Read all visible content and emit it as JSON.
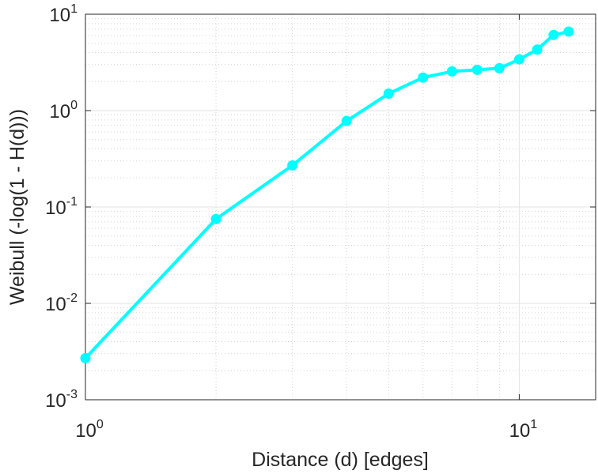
{
  "chart_data": {
    "type": "line",
    "xlabel": "Distance (d) [edges]",
    "ylabel": "Weibull (-log(1 - H(d)))",
    "xscale": "log",
    "yscale": "log",
    "xlim": [
      1,
      15
    ],
    "ylim": [
      0.001,
      10
    ],
    "grid": true,
    "minor_grid": true,
    "line_color": "#00ffff",
    "x_ticks": [
      {
        "value": 1,
        "base": "10",
        "exp": "0"
      },
      {
        "value": 10,
        "base": "10",
        "exp": "1"
      }
    ],
    "y_ticks": [
      {
        "value": 0.001,
        "base": "10",
        "exp": "-3"
      },
      {
        "value": 0.01,
        "base": "10",
        "exp": "-2"
      },
      {
        "value": 0.1,
        "base": "10",
        "exp": "-1"
      },
      {
        "value": 1,
        "base": "10",
        "exp": "0"
      },
      {
        "value": 10,
        "base": "10",
        "exp": "1"
      }
    ],
    "series": [
      {
        "x": [
          1,
          2,
          3,
          4,
          5,
          6,
          7,
          8,
          9,
          10,
          11,
          12,
          13
        ],
        "y": [
          0.0027,
          0.075,
          0.27,
          0.78,
          1.5,
          2.2,
          2.55,
          2.65,
          2.75,
          3.4,
          4.3,
          6.1,
          6.6
        ]
      }
    ]
  }
}
